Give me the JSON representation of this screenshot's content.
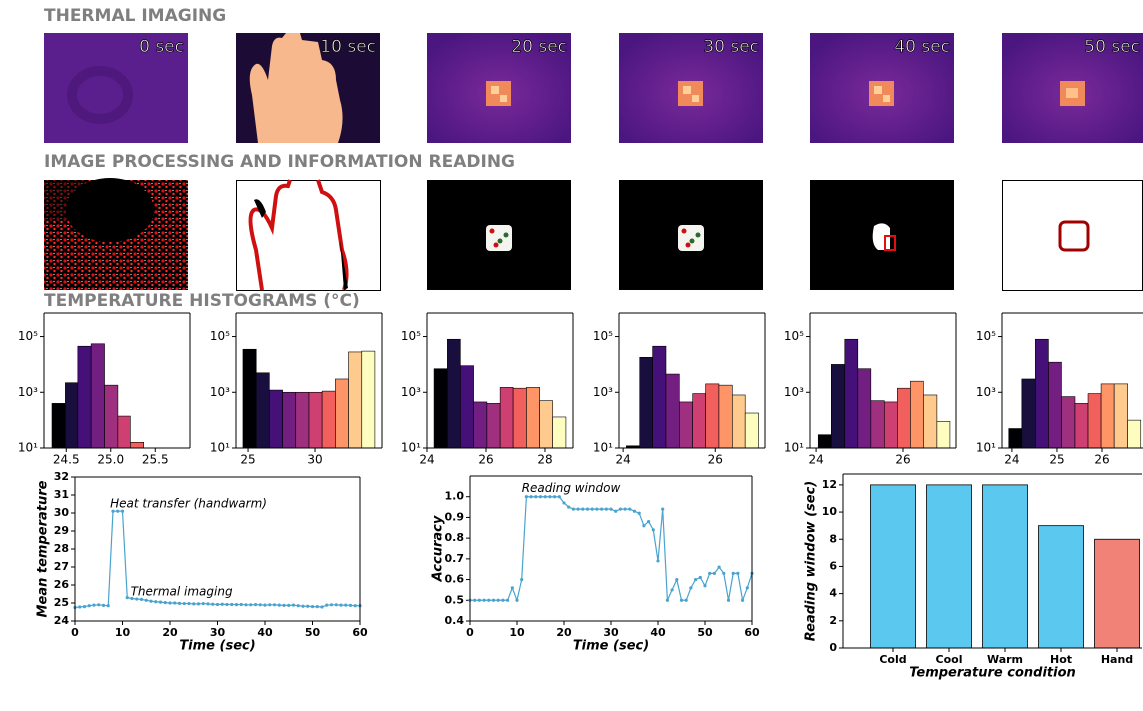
{
  "sections": [
    {
      "title": "THERMAL IMAGING",
      "labels": [
        "0 sec",
        "10 sec",
        "20 sec",
        "30 sec",
        "40 sec",
        "50 sec"
      ]
    },
    {
      "title": "IMAGE PROCESSING AND INFORMATION READING"
    },
    {
      "title": "TEMPERATURE HISTOGRAMS (°C)"
    }
  ],
  "chart_data": [
    {
      "type": "histogram",
      "bins": [
        24.34,
        24.49,
        24.63,
        24.78,
        24.93,
        25.08,
        25.22,
        25.37
      ],
      "values": [
        400,
        2200,
        45000,
        55000,
        1800,
        140,
        16
      ],
      "colors": [
        "#000004",
        "#180f3e",
        "#451077",
        "#721f81",
        "#9f2f7f",
        "#cd4071",
        "#f1605d"
      ],
      "xlim": [
        24.25,
        25.89
      ],
      "xticks": [
        24.5,
        {
          "value": 25.0,
          "label": "25.0"
        },
        25.5
      ],
      "log_y": true,
      "ylim": [
        10,
        700000
      ],
      "yticks": [
        {
          "value": 10,
          "label": "10¹"
        },
        {
          "value": 1000,
          "label": "10³"
        },
        {
          "value": 100000,
          "label": "10⁵"
        }
      ]
    },
    {
      "type": "histogram",
      "bins": [
        24.62,
        25.61,
        26.59,
        27.58,
        28.56,
        29.55,
        30.53,
        31.52,
        32.5,
        33.49,
        34.47
      ],
      "values": [
        35000,
        5000,
        1200,
        1000,
        1000,
        1000,
        1100,
        3000,
        28000,
        30000
      ],
      "colors": [
        "#000004",
        "#180f3e",
        "#451077",
        "#721f81",
        "#9f2f7f",
        "#cd4071",
        "#f1605d",
        "#fd9567",
        "#feca8d",
        "#fcfdbf"
      ],
      "xlim": [
        24.1,
        35
      ],
      "xticks": [
        25,
        30
      ],
      "log_y": true,
      "ylim": [
        10,
        700000
      ],
      "yticks": [
        {
          "value": 10,
          "label": "10¹"
        },
        {
          "value": 1000,
          "label": "10³"
        },
        {
          "value": 100000,
          "label": "10⁵"
        }
      ]
    },
    {
      "type": "histogram",
      "bins": [
        24.24,
        24.69,
        25.13,
        25.58,
        26.03,
        26.48,
        26.92,
        27.37,
        27.82,
        28.26,
        28.71
      ],
      "values": [
        7000,
        80000,
        9000,
        450,
        400,
        1500,
        1400,
        1500,
        500,
        130
      ],
      "colors": [
        "#000004",
        "#180f3e",
        "#451077",
        "#721f81",
        "#9f2f7f",
        "#cd4071",
        "#f1605d",
        "#fd9567",
        "#feca8d",
        "#fcfdbf"
      ],
      "xlim": [
        24,
        28.95
      ],
      "xticks": [
        24,
        26,
        28
      ],
      "log_y": true,
      "ylim": [
        10,
        700000
      ],
      "yticks": [
        {
          "value": 10,
          "label": "10¹"
        },
        {
          "value": 1000,
          "label": "10³"
        },
        {
          "value": 100000,
          "label": "10⁵"
        }
      ]
    },
    {
      "type": "histogram",
      "bins": [
        24.07,
        24.36,
        24.64,
        24.93,
        25.22,
        25.51,
        25.79,
        26.08,
        26.37,
        26.65,
        26.94
      ],
      "values": [
        12,
        18000,
        45000,
        4500,
        450,
        900,
        2000,
        1800,
        800,
        180
      ],
      "colors": [
        "#000004",
        "#180f3e",
        "#451077",
        "#721f81",
        "#9f2f7f",
        "#cd4071",
        "#f1605d",
        "#fd9567",
        "#feca8d",
        "#fcfdbf"
      ],
      "xlim": [
        23.91,
        27.08
      ],
      "xticks": [
        24,
        26
      ],
      "log_y": true,
      "ylim": [
        10,
        700000
      ],
      "yticks": [
        {
          "value": 10,
          "label": "10¹"
        },
        {
          "value": 1000,
          "label": "10³"
        },
        {
          "value": 100000,
          "label": "10⁵"
        }
      ]
    },
    {
      "type": "histogram",
      "bins": [
        24.05,
        24.35,
        24.66,
        24.96,
        25.26,
        25.57,
        25.87,
        26.17,
        26.47,
        26.78,
        27.08
      ],
      "values": [
        30,
        10000,
        80000,
        7000,
        500,
        450,
        1400,
        2500,
        800,
        90
      ],
      "colors": [
        "#000004",
        "#180f3e",
        "#451077",
        "#721f81",
        "#9f2f7f",
        "#cd4071",
        "#f1605d",
        "#fd9567",
        "#feca8d",
        "#fcfdbf"
      ],
      "xlim": [
        23.86,
        27.22
      ],
      "xticks": [
        24,
        26
      ],
      "log_y": true,
      "ylim": [
        10,
        700000
      ],
      "yticks": [
        {
          "value": 10,
          "label": "10¹"
        },
        {
          "value": 1000,
          "label": "10³"
        },
        {
          "value": 100000,
          "label": "10⁵"
        }
      ]
    },
    {
      "type": "histogram",
      "bins": [
        23.93,
        24.22,
        24.52,
        24.81,
        25.1,
        25.4,
        25.69,
        25.98,
        26.27,
        26.57,
        26.86
      ],
      "values": [
        50,
        3000,
        80000,
        12000,
        700,
        400,
        900,
        2000,
        2000,
        100
      ],
      "colors": [
        "#000004",
        "#180f3e",
        "#451077",
        "#721f81",
        "#9f2f7f",
        "#cd4071",
        "#f1605d",
        "#fd9567",
        "#feca8d",
        "#fcfdbf"
      ],
      "xlim": [
        23.78,
        26.91
      ],
      "xticks": [
        24,
        25,
        26
      ],
      "log_y": true,
      "ylim": [
        10,
        700000
      ],
      "yticks": [
        {
          "value": 10,
          "label": "10¹"
        },
        {
          "value": 1000,
          "label": "10³"
        },
        {
          "value": 100000,
          "label": "10⁵"
        }
      ]
    },
    {
      "type": "line",
      "xlabel": "Time (sec)",
      "ylabel": "Mean temperature",
      "color": "#4aa3cf",
      "x": [
        0,
        1,
        2,
        3,
        4,
        5,
        6,
        7,
        8,
        9,
        10,
        11,
        12,
        13,
        14,
        15,
        16,
        17,
        18,
        19,
        20,
        21,
        22,
        23,
        24,
        25,
        26,
        27,
        28,
        29,
        30,
        31,
        32,
        33,
        34,
        35,
        36,
        37,
        38,
        39,
        40,
        41,
        42,
        43,
        44,
        45,
        46,
        47,
        48,
        49,
        50,
        51,
        52,
        53,
        54,
        55,
        56,
        57,
        58,
        59,
        60
      ],
      "values": [
        24.75,
        24.78,
        24.8,
        24.85,
        24.88,
        24.9,
        24.87,
        24.85,
        30.1,
        30.1,
        30.1,
        25.3,
        25.25,
        25.22,
        25.2,
        25.15,
        25.1,
        25.07,
        25.05,
        25.02,
        25.0,
        25.0,
        24.98,
        24.97,
        24.97,
        24.95,
        24.95,
        24.97,
        24.95,
        24.93,
        24.92,
        24.93,
        24.92,
        24.92,
        24.91,
        24.92,
        24.9,
        24.9,
        24.91,
        24.9,
        24.88,
        24.9,
        24.9,
        24.88,
        24.87,
        24.87,
        24.88,
        24.85,
        24.82,
        24.82,
        24.8,
        24.8,
        24.78,
        24.88,
        24.9,
        24.9,
        24.88,
        24.88,
        24.87,
        24.85,
        24.85
      ],
      "xlim": [
        0,
        60
      ],
      "xticks": [
        0,
        10,
        20,
        30,
        40,
        50,
        60
      ],
      "ylim": [
        24,
        32
      ],
      "yticks": [
        24,
        25,
        26,
        27,
        28,
        29,
        30,
        31,
        32
      ],
      "annotations": [
        {
          "text": "Heat transfer (handwarm)",
          "x": 7.4,
          "y": 30.5
        },
        {
          "text": "Thermal imaging",
          "x": 11.7,
          "y": 25.6
        }
      ]
    },
    {
      "type": "line",
      "xlabel": "Time (sec)",
      "ylabel": "Accuracy",
      "color": "#4aa3cf",
      "x": [
        0,
        1,
        2,
        3,
        4,
        5,
        6,
        7,
        8,
        9,
        10,
        11,
        12,
        13,
        14,
        15,
        16,
        17,
        18,
        19,
        20,
        21,
        22,
        23,
        24,
        25,
        26,
        27,
        28,
        29,
        30,
        31,
        32,
        33,
        34,
        35,
        36,
        37,
        38,
        39,
        40,
        41,
        42,
        43,
        44,
        45,
        46,
        47,
        48,
        49,
        50,
        51,
        52,
        53,
        54,
        55,
        56,
        57,
        58,
        59,
        60
      ],
      "values": [
        0.5,
        0.5,
        0.5,
        0.5,
        0.5,
        0.5,
        0.5,
        0.5,
        0.5,
        0.56,
        0.5,
        0.6,
        1.0,
        1.0,
        1.0,
        1.0,
        1.0,
        1.0,
        1.0,
        1.0,
        0.97,
        0.95,
        0.94,
        0.94,
        0.94,
        0.94,
        0.94,
        0.94,
        0.94,
        0.94,
        0.94,
        0.93,
        0.94,
        0.94,
        0.94,
        0.93,
        0.92,
        0.86,
        0.88,
        0.84,
        0.69,
        0.94,
        0.5,
        0.55,
        0.6,
        0.5,
        0.5,
        0.56,
        0.6,
        0.61,
        0.57,
        0.63,
        0.63,
        0.66,
        0.63,
        0.5,
        0.63,
        0.63,
        0.5,
        0.56,
        0.63
      ],
      "xlim": [
        0,
        60
      ],
      "xticks": [
        0,
        10,
        20,
        30,
        40,
        50,
        60
      ],
      "ylim": [
        0.4,
        1.1
      ],
      "yticks": [
        0.4,
        0.5,
        0.6,
        0.7,
        0.8,
        0.9,
        {
          "value": 1.0,
          "label": "1.0"
        }
      ],
      "annotations": [
        {
          "text": "Reading window",
          "x": 11,
          "y": 1.04
        }
      ]
    },
    {
      "type": "bar",
      "xlabel": "Temperature condition",
      "ylabel": "Reading window (sec)",
      "categories": [
        "Cold",
        "Cool",
        "Warm",
        "Hot",
        "Hand"
      ],
      "values": [
        12,
        12,
        12,
        9,
        8
      ],
      "colors": [
        "#5bc8f0",
        "#5bc8f0",
        "#5bc8f0",
        "#5bc8f0",
        "#f08278"
      ],
      "ylim": [
        0,
        12.8
      ],
      "yticks": [
        0,
        2,
        4,
        6,
        8,
        10,
        12
      ]
    }
  ]
}
